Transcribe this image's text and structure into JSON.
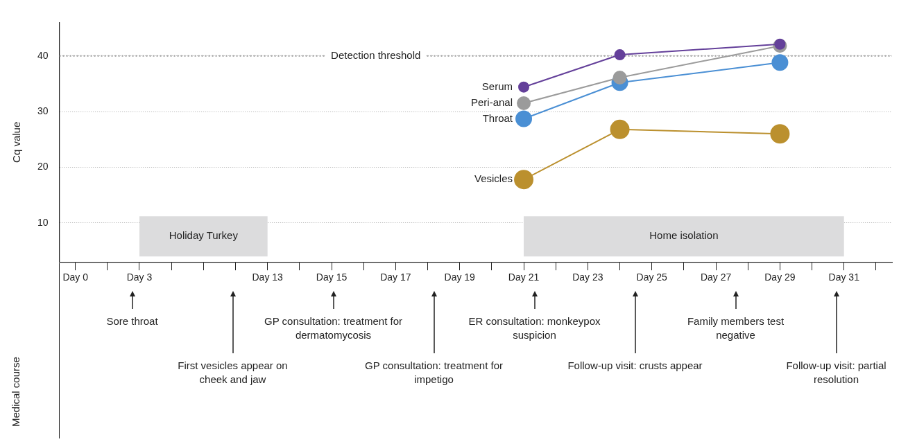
{
  "chart_data": {
    "type": "line",
    "ylabel": "Cq value",
    "categories": [
      "Day 0",
      null,
      "Day 3",
      null,
      null,
      null,
      "Day 13",
      null,
      "Day 15",
      null,
      "Day 17",
      null,
      "Day 19",
      null,
      "Day 21",
      null,
      "Day 23",
      null,
      "Day 25",
      null,
      "Day 27",
      null,
      "Day 29",
      null,
      "Day 31",
      null
    ],
    "series": [
      {
        "name": "Serum",
        "color": "#64409a",
        "values": [
          null,
          null,
          null,
          null,
          null,
          null,
          null,
          null,
          null,
          null,
          null,
          null,
          null,
          null,
          34.4,
          null,
          null,
          40.2,
          null,
          null,
          null,
          null,
          42.1,
          null,
          null,
          null
        ]
      },
      {
        "name": "Peri-anal",
        "color": "#9b9b9b",
        "values": [
          null,
          null,
          null,
          null,
          null,
          null,
          null,
          null,
          null,
          null,
          null,
          null,
          null,
          null,
          31.5,
          null,
          null,
          36.1,
          null,
          null,
          null,
          null,
          41.8,
          null,
          null,
          null
        ]
      },
      {
        "name": "Throat",
        "color": "#4a8fd4",
        "values": [
          null,
          null,
          null,
          null,
          null,
          null,
          null,
          null,
          null,
          null,
          null,
          null,
          null,
          null,
          28.7,
          null,
          null,
          35.2,
          null,
          null,
          null,
          null,
          38.8,
          null,
          null,
          null
        ]
      },
      {
        "name": "Vesicles",
        "color": "#bb902e",
        "values": [
          null,
          null,
          null,
          null,
          null,
          null,
          null,
          null,
          null,
          null,
          null,
          null,
          null,
          null,
          17.8,
          null,
          null,
          26.8,
          null,
          null,
          null,
          null,
          26.0,
          null,
          null,
          null
        ]
      }
    ],
    "ylim": [
      3,
      46
    ],
    "yticks": [
      10,
      20,
      30,
      40
    ],
    "grid": "y",
    "marker": "circle",
    "line_style": "solid",
    "ref_lines": [
      {
        "axis": "y",
        "value": 40,
        "label": "Detection threshold",
        "color": "#999999",
        "line_style": "dotted"
      }
    ],
    "bands": [
      {
        "axis": "x",
        "from": "Day 3",
        "to": "Day 13",
        "label": "Holiday Turkey",
        "color": "#dcdcdd"
      },
      {
        "axis": "x",
        "from": "Day 21",
        "to": "Day 31",
        "label": "Home isolation",
        "color": "#dcdcdd"
      }
    ],
    "annotations": [
      "Medical course",
      "Sore throat",
      "First vesicles appear on cheek and jaw",
      "GP consultation: treatment for dermatomycosis",
      "GP consultation: treatment for impetigo",
      "ER consultation: monkeypox suspicion",
      "Follow-up visit: crusts appear",
      "Family members test negative",
      "Follow-up visit: partial resolution"
    ]
  }
}
